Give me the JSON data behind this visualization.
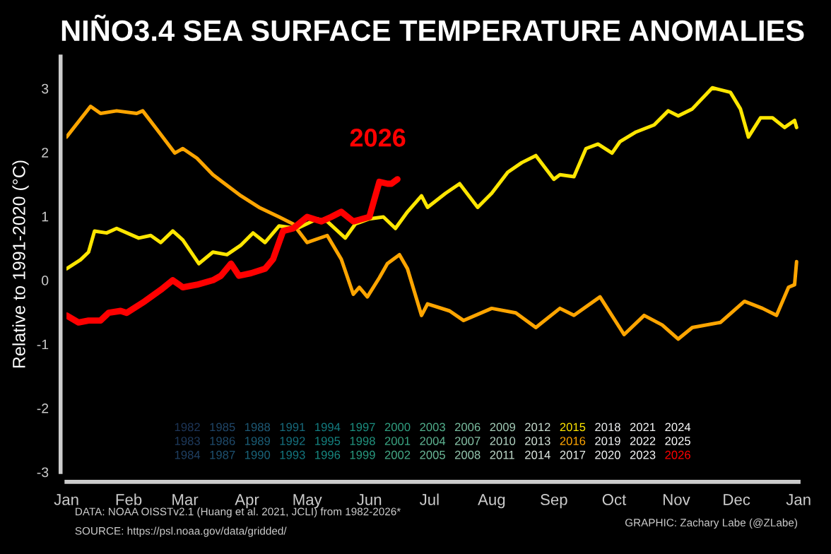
{
  "chart_data": {
    "type": "line",
    "title": "NIÑO3.4 SEA SURFACE TEMPERATURE ANOMALIES",
    "ylabel": "Relative to 1991-2020 (°C)",
    "xlim": [
      "2026-01-01",
      "2027-01-01"
    ],
    "xticks": [
      {
        "value": "2026-01-01",
        "label": "Jan"
      },
      {
        "value": "2026-02-01",
        "label": "Feb"
      },
      {
        "value": "2026-03-01",
        "label": "Mar"
      },
      {
        "value": "2026-04-01",
        "label": "Apr"
      },
      {
        "value": "2026-05-01",
        "label": "May"
      },
      {
        "value": "2026-06-01",
        "label": "Jun"
      },
      {
        "value": "2026-07-01",
        "label": "Jul"
      },
      {
        "value": "2026-08-01",
        "label": "Aug"
      },
      {
        "value": "2026-09-01",
        "label": "Sep"
      },
      {
        "value": "2026-10-01",
        "label": "Oct"
      },
      {
        "value": "2026-11-01",
        "label": "Nov"
      },
      {
        "value": "2026-12-01",
        "label": "Dec"
      },
      {
        "value": "2027-01-01",
        "label": "Jan"
      }
    ],
    "ylim": [
      -3,
      3.5
    ],
    "yticks": [
      -3,
      -2,
      -1,
      0,
      1,
      2,
      3
    ],
    "grid": false,
    "legend": "bottom",
    "marker": "none",
    "line_style": "solid",
    "annotations": [
      "2026",
      "DATA: NOAA OISSTv2.1 (Huang et al. 2021, JCLI) from 1982-2026*",
      "SOURCE: https://psl.noaa.gov/data/gridded/",
      "GRAPHIC: Zachary Labe (@ZLabe)"
    ],
    "series": [
      {
        "name": "1982",
        "color": "#1d3557"
      },
      {
        "name": "1983",
        "color": "#1e3a5c"
      },
      {
        "name": "1984",
        "color": "#1f3f62"
      },
      {
        "name": "1985",
        "color": "#1f4567"
      },
      {
        "name": "1986",
        "color": "#1f4b6c"
      },
      {
        "name": "1987",
        "color": "#1e5170"
      },
      {
        "name": "1988",
        "color": "#1d5874"
      },
      {
        "name": "1989",
        "color": "#1b5e77"
      },
      {
        "name": "1990",
        "color": "#19647a"
      },
      {
        "name": "1991",
        "color": "#176a7c"
      },
      {
        "name": "1992",
        "color": "#15707e"
      },
      {
        "name": "1993",
        "color": "#13767f"
      },
      {
        "name": "1994",
        "color": "#137c80"
      },
      {
        "name": "1995",
        "color": "#148280"
      },
      {
        "name": "1996",
        "color": "#178880"
      },
      {
        "name": "1997",
        "color": "#1b8e80"
      },
      {
        "name": "1998",
        "color": "#21937f"
      },
      {
        "name": "1999",
        "color": "#28997f"
      },
      {
        "name": "2000",
        "color": "#309f80"
      },
      {
        "name": "2001",
        "color": "#3aa482"
      },
      {
        "name": "2002",
        "color": "#45a986"
      },
      {
        "name": "2003",
        "color": "#51ae8b"
      },
      {
        "name": "2004",
        "color": "#5eb391"
      },
      {
        "name": "2005",
        "color": "#6bb898"
      },
      {
        "name": "2006",
        "color": "#79bd9f"
      },
      {
        "name": "2007",
        "color": "#87c2a7"
      },
      {
        "name": "2008",
        "color": "#95c7af"
      },
      {
        "name": "2009",
        "color": "#a3ccb7"
      },
      {
        "name": "2010",
        "color": "#b0d1c0"
      },
      {
        "name": "2011",
        "color": "#bdd7c8"
      },
      {
        "name": "2012",
        "color": "#c9dcd0"
      },
      {
        "name": "2013",
        "color": "#d4e2d8"
      },
      {
        "name": "2014",
        "color": "#dee7e0"
      },
      {
        "name": "2015",
        "color": "#ffe600",
        "x": [
          "2026-01-01",
          "2026-01-08",
          "2026-01-12",
          "2026-01-15",
          "2026-01-21",
          "2026-01-26",
          "2026-02-06",
          "2026-02-12",
          "2026-02-17",
          "2026-02-23",
          "2026-02-28",
          "2026-03-08",
          "2026-03-15",
          "2026-03-22",
          "2026-03-29",
          "2026-04-04",
          "2026-04-10",
          "2026-04-17",
          "2026-04-26",
          "2026-05-06",
          "2026-05-11",
          "2026-05-20",
          "2026-05-25",
          "2026-06-01",
          "2026-06-08",
          "2026-06-14",
          "2026-06-20",
          "2026-06-27",
          "2026-06-30",
          "2026-07-09",
          "2026-07-16",
          "2026-07-25",
          "2026-08-01",
          "2026-08-09",
          "2026-08-16",
          "2026-08-23",
          "2026-09-01",
          "2026-09-04",
          "2026-09-11",
          "2026-09-17",
          "2026-09-23",
          "2026-09-30",
          "2026-10-04",
          "2026-10-12",
          "2026-10-21",
          "2026-10-28",
          "2026-11-02",
          "2026-11-09",
          "2026-11-19",
          "2026-11-28",
          "2026-12-03",
          "2026-12-07",
          "2026-12-13",
          "2026-12-19",
          "2026-12-25",
          "2026-12-30",
          "2026-12-31"
        ],
        "values": [
          0.18,
          0.32,
          0.44,
          0.77,
          0.74,
          0.81,
          0.66,
          0.7,
          0.59,
          0.77,
          0.63,
          0.26,
          0.44,
          0.4,
          0.55,
          0.74,
          0.59,
          0.85,
          0.81,
          0.96,
          0.92,
          0.66,
          0.88,
          0.96,
          0.99,
          0.81,
          1.07,
          1.32,
          1.14,
          1.36,
          1.51,
          1.14,
          1.36,
          1.69,
          1.84,
          1.95,
          1.58,
          1.65,
          1.62,
          2.06,
          2.13,
          1.99,
          2.17,
          2.32,
          2.43,
          2.65,
          2.57,
          2.68,
          3.01,
          2.94,
          2.68,
          2.24,
          2.54,
          2.54,
          2.39,
          2.5,
          2.39
        ]
      },
      {
        "name": "2016",
        "color": "#ffa500",
        "x": [
          "2026-01-01",
          "2026-01-13",
          "2026-01-18",
          "2026-01-26",
          "2026-02-05",
          "2026-02-08",
          "2026-02-17",
          "2026-02-24",
          "2026-02-28",
          "2026-03-07",
          "2026-03-15",
          "2026-03-29",
          "2026-04-07",
          "2026-04-17",
          "2026-04-24",
          "2026-05-01",
          "2026-05-11",
          "2026-05-18",
          "2026-05-24",
          "2026-05-27",
          "2026-05-31",
          "2026-06-06",
          "2026-06-10",
          "2026-06-16",
          "2026-06-20",
          "2026-06-27",
          "2026-06-30",
          "2026-07-11",
          "2026-07-18",
          "2026-08-01",
          "2026-08-13",
          "2026-08-23",
          "2026-09-04",
          "2026-09-11",
          "2026-09-24",
          "2026-10-06",
          "2026-10-16",
          "2026-10-25",
          "2026-11-02",
          "2026-11-09",
          "2026-11-23",
          "2026-12-05",
          "2026-12-14",
          "2026-12-21",
          "2026-12-27",
          "2026-12-30",
          "2026-12-31"
        ],
        "values": [
          2.24,
          2.72,
          2.61,
          2.65,
          2.61,
          2.65,
          2.28,
          1.99,
          2.06,
          1.91,
          1.65,
          1.32,
          1.14,
          0.99,
          0.88,
          0.59,
          0.7,
          0.33,
          -0.22,
          -0.11,
          -0.26,
          0.04,
          0.26,
          0.4,
          0.18,
          -0.55,
          -0.37,
          -0.48,
          -0.63,
          -0.44,
          -0.51,
          -0.74,
          -0.44,
          -0.55,
          -0.26,
          -0.85,
          -0.55,
          -0.7,
          -0.92,
          -0.74,
          -0.66,
          -0.33,
          -0.44,
          -0.55,
          -0.11,
          -0.07,
          0.29
        ]
      },
      {
        "name": "2017",
        "color": "#e6ece8"
      },
      {
        "name": "2018",
        "color": "#eceff0"
      },
      {
        "name": "2019",
        "color": "#f0f2f3"
      },
      {
        "name": "2020",
        "color": "#f3f4f5"
      },
      {
        "name": "2021",
        "color": "#f5f6f7"
      },
      {
        "name": "2022",
        "color": "#f7f8f8"
      },
      {
        "name": "2023",
        "color": "#f9f9fa"
      },
      {
        "name": "2024",
        "color": "#fbfbfb"
      },
      {
        "name": "2025",
        "color": "#fdfdfd"
      },
      {
        "name": "2026",
        "color": "#ff0000",
        "x": [
          "2026-01-01",
          "2026-01-07",
          "2026-01-12",
          "2026-01-18",
          "2026-01-22",
          "2026-01-28",
          "2026-01-31",
          "2026-02-09",
          "2026-02-17",
          "2026-02-23",
          "2026-02-28",
          "2026-03-07",
          "2026-03-15",
          "2026-03-19",
          "2026-03-24",
          "2026-03-28",
          "2026-04-03",
          "2026-04-10",
          "2026-04-14",
          "2026-04-19",
          "2026-04-24",
          "2026-05-01",
          "2026-05-08",
          "2026-05-13",
          "2026-05-18",
          "2026-05-24",
          "2026-06-01",
          "2026-06-06",
          "2026-06-10",
          "2026-06-12",
          "2026-06-15"
        ],
        "values": [
          -0.55,
          -0.66,
          -0.63,
          -0.63,
          -0.51,
          -0.48,
          -0.51,
          -0.33,
          -0.15,
          0.0,
          -0.11,
          -0.07,
          0.0,
          0.07,
          0.26,
          0.07,
          0.11,
          0.18,
          0.33,
          0.77,
          0.81,
          0.99,
          0.92,
          0.99,
          1.07,
          0.92,
          0.99,
          1.54,
          1.51,
          1.51,
          1.58
        ]
      }
    ]
  }
}
